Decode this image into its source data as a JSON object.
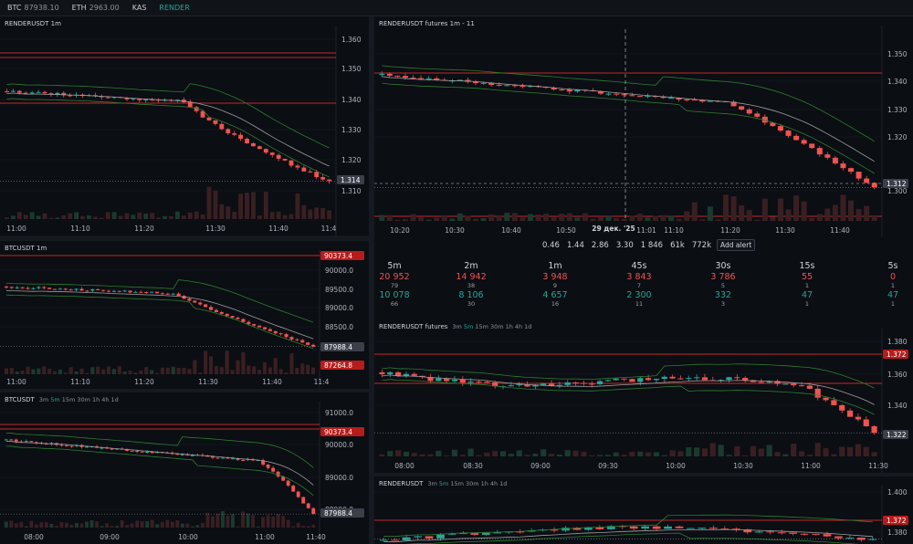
{
  "topbar": {
    "tickers": [
      {
        "symbol": "BTC",
        "price": "87938.10"
      },
      {
        "symbol": "ETH",
        "price": "2963.00"
      },
      {
        "symbol": "KAS",
        "price": ""
      },
      {
        "symbol": "RENDER",
        "price": ""
      }
    ]
  },
  "colors": {
    "up": "#26a69a",
    "down": "#ef5350",
    "bg": "#0b0e13",
    "grid": "#1a1f27",
    "line": "#c62828",
    "band": "#2e7d32",
    "ma": "#9e9e9e"
  },
  "panels": {
    "p1": {
      "title": "RENDERUSDT 1m",
      "price_labels": [
        "1.360",
        "1.350",
        "1.340",
        "1.330",
        "1.320",
        "1.310"
      ],
      "badge": "1.314",
      "time_labels": [
        "11:00",
        "11:10",
        "11:20",
        "11:30",
        "11:40",
        "11:4"
      ]
    },
    "p2": {
      "title": "RENDERUSDT futures 1m - 11",
      "price_labels": [
        "1.350",
        "1.340",
        "1.330",
        "1.320",
        "1.300"
      ],
      "badge": "1.312",
      "time_labels": [
        "10:20",
        "10:30",
        "10:40",
        "10:50",
        "11:01",
        "11:10",
        "11:20",
        "11:30",
        "11:40"
      ],
      "cursor_date": "29 дек. '25"
    },
    "p3": {
      "title": "BTCUSDT 1m",
      "price_labels": [
        "90000.0",
        "89500.0",
        "89000.0",
        "88500.0"
      ],
      "badges": [
        "90373.4",
        "87988.4",
        "87264.8"
      ],
      "time_labels": [
        "11:00",
        "11:10",
        "11:20",
        "11:30",
        "11:40",
        "11:4"
      ]
    },
    "p4": {
      "title": "BTCUSDT",
      "timeframes": [
        "3m",
        "5m",
        "15m",
        "30m",
        "1h",
        "4h",
        "1d"
      ],
      "price_labels": [
        "91000.0",
        "90000.0",
        "89000.0",
        "88000.0"
      ],
      "badges": [
        "90373.4",
        "87988.4"
      ],
      "time_labels": [
        "08:00",
        "09:00",
        "10:00",
        "11:00",
        "11:40"
      ]
    },
    "p5": {
      "title": "RENDERUSDT futures",
      "timeframes": [
        "3m",
        "5m",
        "15m",
        "30m",
        "1h",
        "4h",
        "1d"
      ],
      "price_labels": [
        "1.380",
        "1.360",
        "1.340"
      ],
      "badges": [
        "1.372",
        "1.322"
      ],
      "time_labels": [
        "08:00",
        "08:30",
        "09:00",
        "09:30",
        "10:00",
        "10:30",
        "11:00",
        "11:30"
      ]
    },
    "p6": {
      "title": "RENDERUSDT",
      "timeframes": [
        "3m",
        "5m",
        "15m",
        "30m",
        "1h",
        "4h",
        "1d"
      ],
      "price_labels": [
        "1.400",
        "1.380"
      ],
      "badge": "1.372"
    }
  },
  "toolbar": {
    "values": [
      "0.46",
      "1.44",
      "2.86",
      "3.30",
      "1 846",
      "61k",
      "772k"
    ],
    "add_alert": "Add alert"
  },
  "volume_table": [
    {
      "interval": "5m",
      "sell": "20 952",
      "sell_count": "79",
      "buy": "10 078",
      "buy_count": "66"
    },
    {
      "interval": "2m",
      "sell": "14 942",
      "sell_count": "38",
      "buy": "8 106",
      "buy_count": "30"
    },
    {
      "interval": "1m",
      "sell": "3 948",
      "sell_count": "9",
      "buy": "4 657",
      "buy_count": "16"
    },
    {
      "interval": "45s",
      "sell": "3 843",
      "sell_count": "7",
      "buy": "2 300",
      "buy_count": "11"
    },
    {
      "interval": "30s",
      "sell": "3 786",
      "sell_count": "5",
      "buy": "332",
      "buy_count": "3"
    },
    {
      "interval": "15s",
      "sell": "55",
      "sell_count": "1",
      "buy": "47",
      "buy_count": "1"
    },
    {
      "interval": "5s",
      "sell": "0",
      "sell_count": "1",
      "buy": "47",
      "buy_count": "1"
    }
  ]
}
